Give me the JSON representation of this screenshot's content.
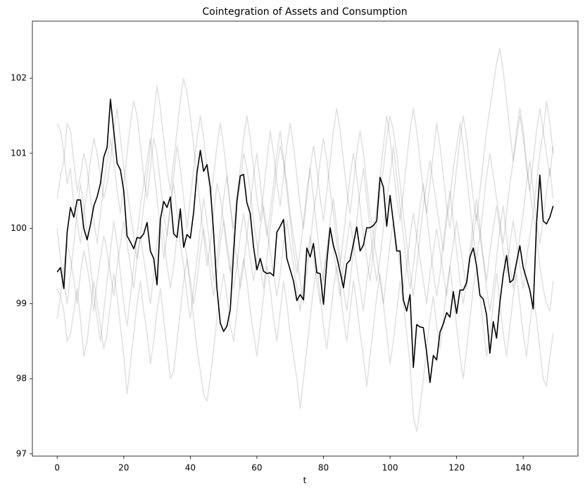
{
  "chart_data": {
    "type": "line",
    "title": "Cointegration of Assets and Consumption",
    "x_label": "t",
    "xlim": [
      -7.45,
      156.45
    ],
    "xticks": [
      0,
      20,
      40,
      60,
      80,
      100,
      120,
      140
    ],
    "ylim": [
      96.97,
      102.76
    ],
    "yticks": [
      97,
      98,
      99,
      100,
      101,
      102
    ],
    "series": [
      {
        "color": "#000000",
        "alpha": 0.12,
        "width": 1.5,
        "values": [
          101.4,
          101.3,
          101.0,
          100.6,
          100.8,
          100.3,
          100.1,
          99.8,
          100.2,
          100.5,
          100.9,
          101.2,
          101.0,
          100.7,
          100.4,
          100.6,
          100.9,
          101.3,
          101.6,
          101.2,
          100.8,
          100.5,
          100.2,
          99.9,
          99.6,
          99.9,
          100.3,
          100.7,
          101.1,
          101.5,
          101.9,
          101.6,
          101.2,
          100.8,
          100.5,
          100.9,
          101.3,
          101.7,
          102.0,
          101.8,
          101.5,
          101.1,
          100.7,
          100.3,
          99.9,
          99.5,
          99.8,
          100.2,
          100.6,
          100.4,
          100.1,
          99.7,
          99.4,
          99.8,
          100.3,
          100.6,
          101.0,
          100.8,
          100.5,
          100.1,
          99.8,
          99.5,
          99.2,
          99.6,
          100.0,
          100.4,
          100.8,
          101.1,
          100.9,
          100.6,
          100.2,
          99.9,
          99.6,
          99.3,
          99.0,
          99.4,
          99.8,
          100.2,
          100.5,
          100.9,
          101.2,
          100.9,
          100.5,
          100.2,
          99.8,
          99.5,
          99.9,
          100.3,
          100.7,
          101.0,
          100.7,
          100.3,
          99.9,
          99.6,
          99.3,
          99.7,
          100.1,
          100.5,
          100.8,
          101.2,
          101.5,
          101.3,
          101.0,
          100.6,
          100.2,
          99.8,
          99.4,
          99.1,
          99.5,
          99.9,
          100.3,
          100.6,
          100.9,
          100.6,
          100.3,
          100.0,
          99.7,
          100.1,
          100.4,
          100.8,
          101.1,
          101.4,
          101.1,
          100.7,
          100.3,
          99.9,
          99.6,
          99.9,
          100.3,
          100.7,
          101.0,
          100.7,
          100.4,
          100.1,
          99.8,
          100.2,
          100.6,
          100.9,
          101.3,
          101.6,
          101.3,
          100.9,
          100.5,
          100.2,
          100.6,
          101.0,
          101.3,
          101.7,
          101.4,
          101.0
        ]
      },
      {
        "color": "#000000",
        "alpha": 0.12,
        "width": 1.5,
        "values": [
          98.8,
          99.1,
          98.9,
          98.5,
          98.6,
          98.9,
          99.2,
          98.8,
          98.3,
          98.5,
          98.9,
          99.3,
          99.0,
          98.7,
          98.4,
          98.6,
          99.0,
          99.4,
          99.1,
          98.7,
          98.3,
          97.8,
          98.2,
          98.6,
          99.0,
          99.3,
          98.9,
          98.6,
          98.2,
          98.5,
          98.9,
          99.2,
          98.8,
          98.4,
          98.0,
          98.1,
          98.5,
          98.9,
          99.3,
          99.6,
          99.2,
          98.8,
          98.4,
          98.1,
          97.8,
          97.7,
          98.0,
          98.4,
          98.8,
          99.1,
          99.4,
          99.1,
          98.7,
          98.5,
          98.9,
          99.3,
          99.6,
          99.3,
          98.9,
          98.6,
          98.3,
          98.7,
          99.1,
          99.5,
          99.2,
          98.8,
          98.5,
          98.9,
          99.3,
          99.0,
          98.6,
          98.3,
          98.0,
          97.6,
          98.0,
          98.4,
          98.8,
          99.2,
          99.5,
          99.1,
          98.7,
          98.4,
          98.8,
          99.2,
          99.5,
          99.2,
          98.8,
          98.5,
          98.9,
          99.3,
          99.0,
          98.6,
          98.3,
          97.9,
          98.3,
          98.7,
          99.1,
          99.4,
          99.0,
          98.6,
          98.2,
          98.5,
          98.9,
          99.3,
          99.0,
          98.6,
          98.2,
          97.5,
          97.3,
          97.6,
          98.0,
          98.4,
          98.8,
          99.1,
          98.7,
          98.4,
          98.8,
          99.2,
          99.5,
          99.1,
          98.7,
          98.3,
          98.0,
          98.4,
          98.8,
          99.2,
          99.5,
          99.1,
          98.7,
          98.3,
          98.6,
          99.0,
          99.4,
          99.0,
          98.6,
          98.3,
          98.7,
          99.1,
          99.4,
          99.0,
          98.6,
          98.3,
          98.7,
          99.1,
          98.8,
          98.4,
          98.0,
          97.9,
          98.3,
          98.6
        ]
      },
      {
        "color": "#000000",
        "alpha": 0.12,
        "width": 1.5,
        "values": [
          100.4,
          100.7,
          100.9,
          101.4,
          101.3,
          100.9,
          100.5,
          100.7,
          101.0,
          100.8,
          100.4,
          100.1,
          99.8,
          100.2,
          100.6,
          100.9,
          101.2,
          100.9,
          100.5,
          100.2,
          100.6,
          101.0,
          101.4,
          101.7,
          101.5,
          101.1,
          100.7,
          100.4,
          100.8,
          101.2,
          101.0,
          100.6,
          100.2,
          99.9,
          100.3,
          100.7,
          101.1,
          100.8,
          100.4,
          100.0,
          100.4,
          100.8,
          101.2,
          101.5,
          101.2,
          100.8,
          100.4,
          100.7,
          101.1,
          101.4,
          101.1,
          100.7,
          100.3,
          100.0,
          100.4,
          100.8,
          101.2,
          101.5,
          101.2,
          100.8,
          100.4,
          100.1,
          100.5,
          100.9,
          101.3,
          101.0,
          100.6,
          100.3,
          100.7,
          101.1,
          101.4,
          101.1,
          100.7,
          100.3,
          100.0,
          100.4,
          100.8,
          101.1,
          100.8,
          100.4,
          100.1,
          100.5,
          100.9,
          101.3,
          101.6,
          101.3,
          100.9,
          100.5,
          100.2,
          100.6,
          101.0,
          101.3,
          101.0,
          100.6,
          100.2,
          99.9,
          100.3,
          100.7,
          101.1,
          101.5,
          101.2,
          100.8,
          100.4,
          100.1,
          100.5,
          100.9,
          101.3,
          101.6,
          101.3,
          100.9,
          100.5,
          100.2,
          100.6,
          101.0,
          101.4,
          101.1,
          100.7,
          100.3,
          100.0,
          100.4,
          100.8,
          101.2,
          101.5,
          101.2,
          100.8,
          100.4,
          100.1,
          100.5,
          100.9,
          101.3,
          101.6,
          101.9,
          102.2,
          102.4,
          102.1,
          101.7,
          101.3,
          100.9,
          101.2,
          101.5,
          101.2,
          100.8,
          100.5,
          100.9,
          101.3,
          101.6,
          101.3,
          101.0,
          100.7,
          101.1
        ]
      },
      {
        "color": "#000000",
        "alpha": 0.12,
        "width": 1.5,
        "values": [
          99.2,
          99.1,
          99.5,
          99.8,
          99.6,
          99.3,
          99.0,
          99.4,
          99.7,
          99.5,
          99.2,
          98.9,
          99.3,
          99.6,
          99.9,
          99.7,
          99.4,
          99.1,
          99.5,
          99.8,
          100.1,
          99.8,
          99.5,
          99.2,
          99.6,
          99.9,
          99.6,
          99.3,
          99.0,
          99.4,
          99.8,
          100.1,
          99.9,
          99.5,
          99.2,
          99.5,
          99.9,
          100.2,
          99.9,
          99.6,
          99.3,
          99.0,
          99.3,
          99.7,
          100.0,
          99.7,
          99.4,
          99.1,
          99.4,
          99.8,
          100.1,
          99.8,
          99.5,
          99.2,
          99.5,
          99.9,
          100.2,
          99.9,
          99.6,
          99.3,
          99.6,
          100.0,
          100.3,
          100.0,
          99.7,
          99.4,
          99.1,
          99.4,
          99.8,
          100.1,
          99.8,
          99.5,
          99.2,
          98.9,
          99.3,
          99.6,
          99.9,
          99.6,
          99.3,
          99.0,
          99.4,
          99.7,
          100.0,
          99.7,
          99.4,
          99.1,
          99.5,
          99.8,
          100.1,
          99.8,
          99.5,
          99.2,
          98.9,
          99.3,
          99.6,
          99.9,
          99.6,
          99.3,
          99.0,
          99.4,
          99.8,
          100.1,
          99.8,
          99.5,
          99.2,
          99.5,
          99.9,
          100.2,
          99.9,
          99.6,
          99.3,
          99.0,
          99.4,
          99.7,
          100.0,
          99.7,
          99.4,
          99.1,
          99.5,
          99.8,
          100.1,
          99.8,
          99.5,
          99.2,
          99.6,
          99.9,
          100.2,
          99.9,
          99.6,
          99.3,
          99.7,
          100.0,
          100.3,
          100.0,
          99.7,
          99.4,
          99.8,
          100.1,
          99.8,
          99.5,
          99.2,
          99.6,
          99.9,
          100.2,
          99.9,
          99.5,
          99.2,
          99.0,
          98.9,
          99.3
        ]
      },
      {
        "color": "#000000",
        "alpha": 0.12,
        "width": 1.5,
        "values": [
          100.0,
          99.6,
          99.3,
          99.0,
          99.4,
          99.8,
          100.2,
          100.6,
          100.3,
          99.9,
          99.5,
          99.1,
          98.8,
          98.5,
          98.9,
          99.3,
          99.7,
          100.1,
          99.8,
          99.4,
          99.0,
          98.7,
          99.1,
          99.5,
          99.9,
          100.3,
          100.6,
          100.9,
          101.2,
          100.8,
          100.4,
          100.0,
          99.6,
          99.9,
          100.3,
          100.6,
          100.2,
          99.8,
          99.5,
          99.1,
          98.8,
          99.2,
          99.6,
          100.0,
          100.4,
          100.1,
          99.7,
          99.3,
          99.6,
          100.0,
          100.4,
          100.7,
          100.3,
          99.9,
          99.6,
          99.2,
          99.5,
          99.9,
          100.3,
          100.7,
          101.0,
          100.6,
          100.2,
          99.9,
          100.2,
          100.6,
          101.0,
          101.3,
          100.9,
          100.5,
          100.1,
          99.7,
          99.4,
          99.7,
          100.1,
          100.5,
          100.8,
          100.4,
          100.0,
          99.6,
          99.3,
          99.7,
          100.1,
          100.4,
          100.0,
          99.6,
          99.2,
          98.9,
          99.3,
          99.7,
          100.1,
          100.5,
          100.8,
          100.4,
          100.0,
          99.6,
          99.3,
          99.6,
          100.0,
          100.4,
          100.7,
          101.1,
          100.7,
          100.3,
          99.9,
          99.5,
          99.2,
          99.5,
          99.9,
          100.3,
          100.6,
          100.2,
          99.8,
          99.4,
          99.1,
          99.4,
          99.8,
          100.2,
          100.5,
          100.1,
          99.7,
          99.3,
          99.0,
          99.3,
          99.7,
          100.1,
          100.4,
          100.0,
          99.6,
          99.2,
          98.9,
          99.2,
          99.6,
          100.0,
          100.3,
          99.9,
          99.5,
          99.2,
          99.5,
          99.9,
          100.2,
          100.6,
          100.9,
          100.5,
          100.1,
          99.8,
          100.1,
          100.5,
          100.8,
          100.4
        ]
      },
      {
        "color": "#000000",
        "alpha": 1,
        "width": 1.6,
        "values": [
          99.42,
          99.48,
          99.2,
          99.95,
          100.28,
          100.15,
          100.38,
          100.38,
          100.0,
          99.85,
          100.05,
          100.3,
          100.42,
          100.6,
          100.95,
          101.08,
          101.72,
          101.3,
          100.87,
          100.78,
          100.5,
          99.9,
          99.82,
          99.73,
          99.88,
          99.87,
          99.93,
          100.08,
          99.7,
          99.6,
          99.25,
          100.12,
          100.36,
          100.28,
          100.42,
          99.93,
          99.88,
          100.26,
          99.75,
          99.92,
          99.87,
          100.22,
          100.74,
          101.04,
          100.76,
          100.85,
          100.55,
          99.94,
          99.2,
          98.74,
          98.63,
          98.7,
          98.92,
          99.68,
          100.37,
          100.7,
          100.72,
          100.34,
          100.2,
          99.75,
          99.45,
          99.6,
          99.43,
          99.4,
          99.41,
          99.37,
          99.95,
          100.03,
          100.12,
          99.6,
          99.45,
          99.3,
          99.04,
          99.12,
          99.05,
          99.74,
          99.62,
          99.8,
          99.41,
          99.4,
          98.99,
          99.55,
          100.01,
          99.77,
          99.62,
          99.42,
          99.21,
          99.53,
          99.58,
          99.8,
          100.02,
          99.7,
          99.78,
          100.01,
          100.01,
          100.04,
          100.1,
          100.68,
          100.55,
          100.03,
          100.44,
          100.08,
          99.7,
          99.7,
          99.05,
          98.9,
          99.12,
          98.15,
          98.72,
          98.69,
          98.68,
          98.35,
          97.95,
          98.31,
          98.25,
          98.62,
          98.73,
          98.88,
          98.82,
          99.16,
          98.87,
          99.18,
          99.18,
          99.28,
          99.62,
          99.74,
          99.5,
          99.11,
          99.06,
          98.85,
          98.34,
          98.76,
          98.54,
          99.02,
          99.38,
          99.64,
          99.28,
          99.32,
          99.55,
          99.77,
          99.48,
          99.33,
          99.18,
          98.93,
          100.06,
          100.71,
          100.1,
          100.06,
          100.15,
          100.3
        ]
      }
    ]
  }
}
